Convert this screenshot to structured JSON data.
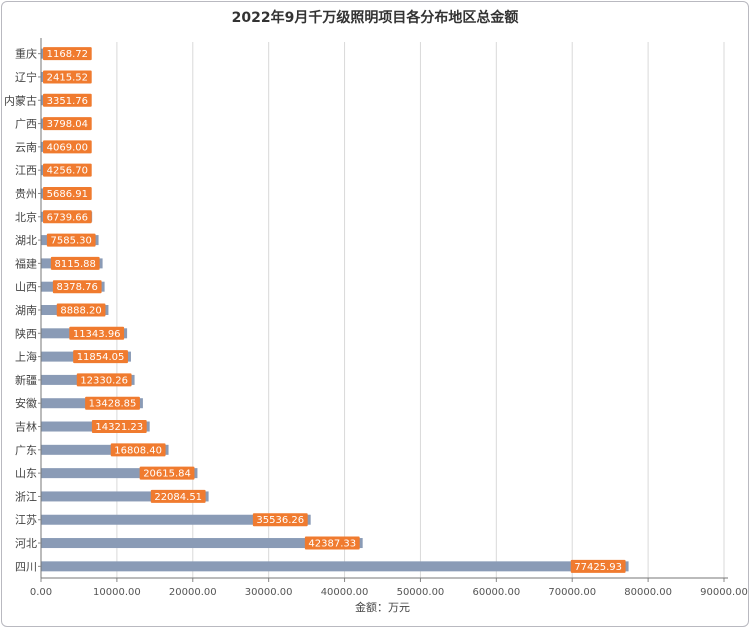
{
  "chart_data": {
    "type": "bar",
    "orientation": "horizontal",
    "title": "2022年9月千万级照明项目各分布地区总金额",
    "xlabel": "金额：万元",
    "ylabel": "",
    "xlim": [
      0,
      90000
    ],
    "x_ticks": [
      "0.00",
      "10000.00",
      "20000.00",
      "30000.00",
      "40000.00",
      "50000.00",
      "60000.00",
      "70000.00",
      "80000.00",
      "90000.00"
    ],
    "grid": true,
    "categories": [
      "重庆",
      "辽宁",
      "内蒙古",
      "广西",
      "云南",
      "江西",
      "贵州",
      "北京",
      "湖北",
      "福建",
      "山西",
      "湖南",
      "陕西",
      "上海",
      "新疆",
      "安徽",
      "吉林",
      "广东",
      "山东",
      "浙江",
      "江苏",
      "河北",
      "四川"
    ],
    "values": [
      1168.72,
      2415.52,
      3351.76,
      3798.04,
      4069.0,
      4256.7,
      5686.91,
      6739.66,
      7585.3,
      8115.88,
      8378.76,
      8888.2,
      11343.96,
      11854.05,
      12330.26,
      13428.85,
      14321.23,
      16808.4,
      20615.84,
      22084.51,
      35536.26,
      42387.33,
      77425.93
    ],
    "data_labels": [
      "1168.72",
      "2415.52",
      "3351.76",
      "3798.04",
      "4069.00",
      "4256.70",
      "5686.91",
      "6739.66",
      "7585.30",
      "8115.88",
      "8378.76",
      "8888.20",
      "11343.96",
      "11854.05",
      "12330.26",
      "13428.85",
      "14321.23",
      "16808.40",
      "20615.84",
      "22084.51",
      "35536.26",
      "42387.33",
      "77425.93"
    ],
    "bar_color": "#8a9bb6",
    "label_color": "#f07b2f"
  }
}
